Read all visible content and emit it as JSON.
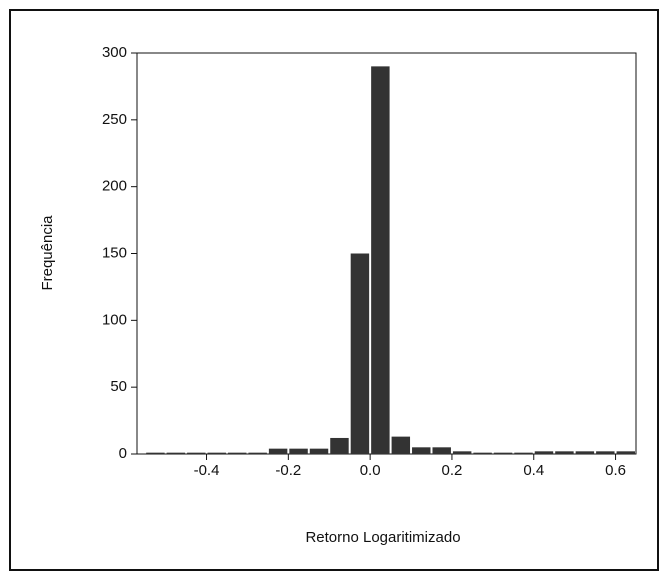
{
  "chart_data": {
    "type": "histogram",
    "xlabel": "Retorno Logaritimizado",
    "ylabel": "Frequência",
    "bins": [
      -0.55,
      -0.5,
      -0.45,
      -0.4,
      -0.35,
      -0.3,
      -0.25,
      -0.2,
      -0.15,
      -0.1,
      -0.05,
      0,
      0.05,
      0.1,
      0.15,
      0.2,
      0.25,
      0.3,
      0.35,
      0.4,
      0.45,
      0.5,
      0.55,
      0.6,
      0.65
    ],
    "values": [
      1,
      1,
      1,
      1,
      1,
      1,
      4,
      4,
      4,
      12,
      150,
      290,
      13,
      5,
      5,
      2,
      1,
      1,
      1,
      2,
      2,
      2,
      2,
      2
    ],
    "color": "#333333",
    "xlim": [
      -0.57,
      0.65
    ],
    "xticks": [
      -0.4,
      -0.2,
      {
        "value": 0,
        "label": "0.0"
      },
      0.2,
      0.4,
      0.6
    ],
    "ylim": [
      0,
      300
    ],
    "yticks": [
      0,
      50,
      100,
      150,
      200,
      250,
      300
    ]
  }
}
